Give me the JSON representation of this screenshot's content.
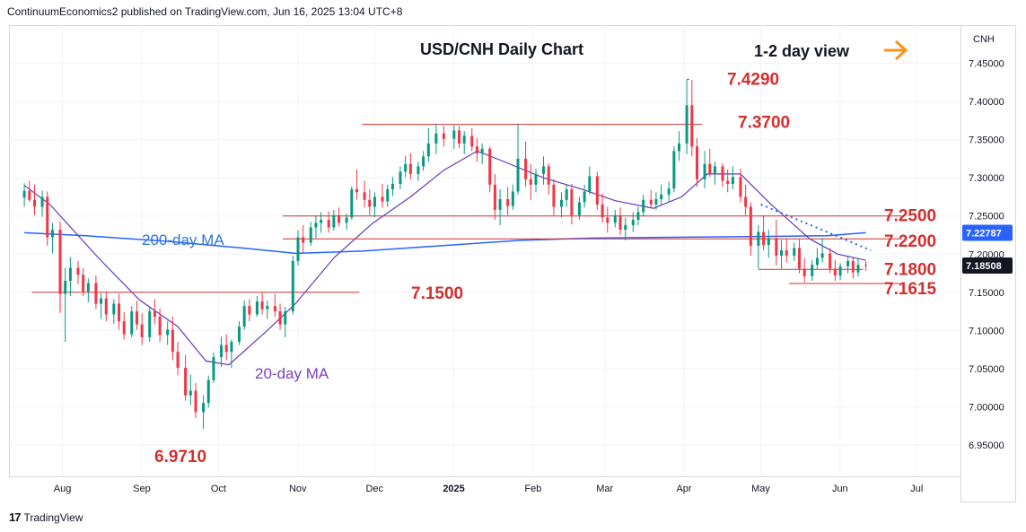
{
  "header": {
    "publisher_line": "ContinuumEconomics2 published on TradingView.com, Jun 16, 2025 13:04 UTC+8"
  },
  "footer": {
    "brand": "TradingView",
    "logo_glyph": "17"
  },
  "symbol_box": {
    "label": "CNH"
  },
  "annotation": {
    "view": "1-2 day view",
    "arrow_color": "#f7931a"
  },
  "colors": {
    "up": "#089981",
    "down": "#f23645",
    "ma200": "#2962ff",
    "ma20": "#673ab7",
    "level": "#d32f2f",
    "label_blue": "#2b77d9",
    "label_purple": "#7b3fbf"
  },
  "chart_data": {
    "type": "candlestick",
    "title": "USD/CNH Daily Chart",
    "y_range": [
      6.91,
      7.5
    ],
    "y_ticks": [
      6.95,
      7.0,
      7.05,
      7.1,
      7.15,
      7.2,
      7.25,
      7.3,
      7.35,
      7.4,
      7.45
    ],
    "y_tick_labels": [
      "6.95000",
      "7.00000",
      "7.05000",
      "7.10000",
      "7.15000",
      "7.20000",
      "7.25000",
      "7.30000",
      "7.35000",
      "7.40000",
      "7.45000"
    ],
    "x_labels": [
      "Aug",
      "Sep",
      "Oct",
      "Nov",
      "Dec",
      "2025",
      "Feb",
      "Mar",
      "Apr",
      "May",
      "Jun",
      "Jul"
    ],
    "price_tags": [
      {
        "value": 7.22787,
        "label": "7.22787",
        "color": "#2962ff"
      },
      {
        "value": 7.18508,
        "label": "7.18508",
        "color": "#131722"
      }
    ],
    "levels": [
      {
        "label": "7.4290",
        "value": 7.429,
        "start": "2025-04-07",
        "end": "2025-04-08"
      },
      {
        "label": "7.3700",
        "value": 7.37,
        "start": "2024-12-01",
        "end": "2025-04-13"
      },
      {
        "label": "7.2500",
        "value": 7.25,
        "start": "2024-10-31",
        "end": "2025-06-30"
      },
      {
        "label": "7.2200",
        "value": 7.22,
        "start": "2024-10-31",
        "end": "2025-06-30"
      },
      {
        "label": "7.1800",
        "value": 7.18,
        "start": "2025-05-05",
        "end": "2025-06-15"
      },
      {
        "label": "7.1615",
        "value": 7.1615,
        "start": "2025-05-17",
        "end": "2025-06-30"
      },
      {
        "label": "7.1500",
        "value": 7.15,
        "start": "2024-07-25",
        "end": "2024-11-30"
      },
      {
        "label": "6.9710",
        "value": 6.971
      }
    ],
    "ma_labels": [
      {
        "label": "200-day MA",
        "series": "ma200"
      },
      {
        "label": "20-day MA",
        "series": "ma20"
      }
    ],
    "candles": [
      [
        "2024-07-22",
        7.274,
        7.293,
        7.262,
        7.283
      ],
      [
        "2024-07-24",
        7.283,
        7.296,
        7.268,
        7.271
      ],
      [
        "2024-07-26",
        7.271,
        7.291,
        7.251,
        7.262
      ],
      [
        "2024-07-29",
        7.262,
        7.283,
        7.249,
        7.275
      ],
      [
        "2024-07-31",
        7.275,
        7.282,
        7.211,
        7.222
      ],
      [
        "2024-08-02",
        7.222,
        7.241,
        7.201,
        7.232
      ],
      [
        "2024-08-05",
        7.232,
        7.243,
        7.123,
        7.148
      ],
      [
        "2024-08-07",
        7.148,
        7.182,
        7.085,
        7.165
      ],
      [
        "2024-08-09",
        7.165,
        7.196,
        7.145,
        7.182
      ],
      [
        "2024-08-12",
        7.182,
        7.191,
        7.161,
        7.173
      ],
      [
        "2024-08-14",
        7.173,
        7.182,
        7.145,
        7.151
      ],
      [
        "2024-08-16",
        7.151,
        7.168,
        7.137,
        7.162
      ],
      [
        "2024-08-19",
        7.162,
        7.172,
        7.128,
        7.135
      ],
      [
        "2024-08-21",
        7.135,
        7.149,
        7.115,
        7.142
      ],
      [
        "2024-08-23",
        7.142,
        7.151,
        7.112,
        7.121
      ],
      [
        "2024-08-26",
        7.121,
        7.141,
        7.109,
        7.135
      ],
      [
        "2024-08-28",
        7.135,
        7.148,
        7.101,
        7.112
      ],
      [
        "2024-08-30",
        7.112,
        7.124,
        7.088,
        7.095
      ],
      [
        "2024-09-02",
        7.095,
        7.132,
        7.091,
        7.125
      ],
      [
        "2024-09-04",
        7.125,
        7.139,
        7.101,
        7.108
      ],
      [
        "2024-09-06",
        7.108,
        7.122,
        7.081,
        7.091
      ],
      [
        "2024-09-09",
        7.091,
        7.131,
        7.085,
        7.125
      ],
      [
        "2024-09-11",
        7.125,
        7.141,
        7.108,
        7.118
      ],
      [
        "2024-09-13",
        7.118,
        7.129,
        7.085,
        7.094
      ],
      [
        "2024-09-16",
        7.094,
        7.112,
        7.081,
        7.101
      ],
      [
        "2024-09-18",
        7.101,
        7.118,
        7.061,
        7.072
      ],
      [
        "2024-09-20",
        7.072,
        7.085,
        7.041,
        7.051
      ],
      [
        "2024-09-23",
        7.051,
        7.068,
        7.008,
        7.015
      ],
      [
        "2024-09-25",
        7.015,
        7.042,
        7.002,
        7.021
      ],
      [
        "2024-09-27",
        7.021,
        7.031,
        6.985,
        6.993
      ],
      [
        "2024-09-30",
        6.993,
        7.015,
        6.971,
        7.005
      ],
      [
        "2024-10-02",
        7.005,
        7.041,
        6.999,
        7.035
      ],
      [
        "2024-10-04",
        7.035,
        7.071,
        7.031,
        7.065
      ],
      [
        "2024-10-07",
        7.065,
        7.092,
        7.052,
        7.081
      ],
      [
        "2024-10-09",
        7.081,
        7.095,
        7.061,
        7.072
      ],
      [
        "2024-10-11",
        7.072,
        7.088,
        7.051,
        7.085
      ],
      [
        "2024-10-14",
        7.085,
        7.112,
        7.081,
        7.105
      ],
      [
        "2024-10-16",
        7.105,
        7.139,
        7.101,
        7.132
      ],
      [
        "2024-10-18",
        7.132,
        7.141,
        7.112,
        7.121
      ],
      [
        "2024-10-21",
        7.121,
        7.145,
        7.118,
        7.138
      ],
      [
        "2024-10-23",
        7.138,
        7.149,
        7.121,
        7.128
      ],
      [
        "2024-10-25",
        7.128,
        7.139,
        7.115,
        7.132
      ],
      [
        "2024-10-28",
        7.132,
        7.148,
        7.118,
        7.125
      ],
      [
        "2024-10-30",
        7.125,
        7.135,
        7.101,
        7.108
      ],
      [
        "2024-11-01",
        7.108,
        7.131,
        7.091,
        7.125
      ],
      [
        "2024-11-04",
        7.125,
        7.198,
        7.121,
        7.191
      ],
      [
        "2024-11-06",
        7.191,
        7.231,
        7.185,
        7.222
      ],
      [
        "2024-11-08",
        7.222,
        7.238,
        7.201,
        7.215
      ],
      [
        "2024-11-11",
        7.215,
        7.242,
        7.211,
        7.235
      ],
      [
        "2024-11-13",
        7.235,
        7.251,
        7.221,
        7.241
      ],
      [
        "2024-11-15",
        7.241,
        7.255,
        7.228,
        7.245
      ],
      [
        "2024-11-18",
        7.245,
        7.256,
        7.228,
        7.235
      ],
      [
        "2024-11-20",
        7.235,
        7.258,
        7.231,
        7.251
      ],
      [
        "2024-11-22",
        7.251,
        7.261,
        7.236,
        7.241
      ],
      [
        "2024-11-25",
        7.241,
        7.253,
        7.232,
        7.248
      ],
      [
        "2024-11-27",
        7.248,
        7.289,
        7.245,
        7.285
      ],
      [
        "2024-11-29",
        7.285,
        7.311,
        7.271,
        7.281
      ],
      [
        "2024-12-02",
        7.281,
        7.296,
        7.261,
        7.271
      ],
      [
        "2024-12-04",
        7.271,
        7.285,
        7.251,
        7.262
      ],
      [
        "2024-12-06",
        7.262,
        7.281,
        7.248,
        7.275
      ],
      [
        "2024-12-09",
        7.275,
        7.292,
        7.261,
        7.269
      ],
      [
        "2024-12-11",
        7.269,
        7.291,
        7.262,
        7.285
      ],
      [
        "2024-12-13",
        7.285,
        7.301,
        7.276,
        7.292
      ],
      [
        "2024-12-16",
        7.292,
        7.315,
        7.285,
        7.308
      ],
      [
        "2024-12-18",
        7.308,
        7.329,
        7.301,
        7.318
      ],
      [
        "2024-12-20",
        7.318,
        7.332,
        7.298,
        7.305
      ],
      [
        "2024-12-23",
        7.305,
        7.321,
        7.296,
        7.315
      ],
      [
        "2024-12-25",
        7.315,
        7.335,
        7.309,
        7.328
      ],
      [
        "2024-12-27",
        7.328,
        7.365,
        7.321,
        7.345
      ],
      [
        "2024-12-30",
        7.345,
        7.371,
        7.331,
        7.358
      ],
      [
        "2025-01-02",
        7.358,
        7.368,
        7.341,
        7.351
      ],
      [
        "2025-01-06",
        7.351,
        7.369,
        7.338,
        7.362
      ],
      [
        "2025-01-08",
        7.362,
        7.368,
        7.339,
        7.345
      ],
      [
        "2025-01-10",
        7.345,
        7.361,
        7.331,
        7.355
      ],
      [
        "2025-01-13",
        7.355,
        7.365,
        7.335,
        7.341
      ],
      [
        "2025-01-15",
        7.341,
        7.352,
        7.321,
        7.332
      ],
      [
        "2025-01-17",
        7.332,
        7.345,
        7.318,
        7.338
      ],
      [
        "2025-01-20",
        7.338,
        7.341,
        7.281,
        7.291
      ],
      [
        "2025-01-22",
        7.291,
        7.305,
        7.245,
        7.258
      ],
      [
        "2025-01-24",
        7.258,
        7.285,
        7.238,
        7.272
      ],
      [
        "2025-01-27",
        7.272,
        7.288,
        7.251,
        7.263
      ],
      [
        "2025-01-29",
        7.263,
        7.291,
        7.258,
        7.282
      ],
      [
        "2025-01-31",
        7.282,
        7.371,
        7.278,
        7.325
      ],
      [
        "2025-02-03",
        7.325,
        7.348,
        7.288,
        7.298
      ],
      [
        "2025-02-05",
        7.298,
        7.318,
        7.271,
        7.291
      ],
      [
        "2025-02-07",
        7.291,
        7.312,
        7.281,
        7.305
      ],
      [
        "2025-02-10",
        7.305,
        7.328,
        7.291,
        7.315
      ],
      [
        "2025-02-12",
        7.315,
        7.319,
        7.278,
        7.291
      ],
      [
        "2025-02-14",
        7.291,
        7.298,
        7.251,
        7.262
      ],
      [
        "2025-02-17",
        7.262,
        7.281,
        7.248,
        7.271
      ],
      [
        "2025-02-19",
        7.271,
        7.291,
        7.262,
        7.285
      ],
      [
        "2025-02-21",
        7.285,
        7.292,
        7.239,
        7.251
      ],
      [
        "2025-02-24",
        7.251,
        7.275,
        7.245,
        7.268
      ],
      [
        "2025-02-26",
        7.268,
        7.291,
        7.261,
        7.282
      ],
      [
        "2025-02-28",
        7.282,
        7.315,
        7.278,
        7.302
      ],
      [
        "2025-03-03",
        7.302,
        7.308,
        7.258,
        7.265
      ],
      [
        "2025-03-05",
        7.265,
        7.279,
        7.241,
        7.248
      ],
      [
        "2025-03-07",
        7.248,
        7.262,
        7.228,
        7.241
      ],
      [
        "2025-03-10",
        7.241,
        7.258,
        7.235,
        7.251
      ],
      [
        "2025-03-12",
        7.251,
        7.261,
        7.225,
        7.232
      ],
      [
        "2025-03-14",
        7.232,
        7.248,
        7.218,
        7.238
      ],
      [
        "2025-03-17",
        7.238,
        7.255,
        7.229,
        7.245
      ],
      [
        "2025-03-19",
        7.245,
        7.262,
        7.238,
        7.255
      ],
      [
        "2025-03-21",
        7.255,
        7.278,
        7.249,
        7.271
      ],
      [
        "2025-03-24",
        7.271,
        7.284,
        7.261,
        7.265
      ],
      [
        "2025-03-26",
        7.265,
        7.281,
        7.258,
        7.272
      ],
      [
        "2025-03-28",
        7.272,
        7.291,
        7.265,
        7.278
      ],
      [
        "2025-03-31",
        7.278,
        7.295,
        7.268,
        7.286
      ],
      [
        "2025-04-02",
        7.286,
        7.341,
        7.281,
        7.335
      ],
      [
        "2025-04-04",
        7.335,
        7.361,
        7.322,
        7.345
      ],
      [
        "2025-04-07",
        7.345,
        7.429,
        7.331,
        7.395
      ],
      [
        "2025-04-09",
        7.395,
        7.428,
        7.328,
        7.341
      ],
      [
        "2025-04-11",
        7.341,
        7.352,
        7.288,
        7.298
      ],
      [
        "2025-04-14",
        7.298,
        7.335,
        7.286,
        7.318
      ],
      [
        "2025-04-16",
        7.318,
        7.338,
        7.301,
        7.305
      ],
      [
        "2025-04-18",
        7.305,
        7.321,
        7.291,
        7.315
      ],
      [
        "2025-04-21",
        7.315,
        7.319,
        7.288,
        7.296
      ],
      [
        "2025-04-23",
        7.296,
        7.311,
        7.281,
        7.292
      ],
      [
        "2025-04-25",
        7.292,
        7.315,
        7.285,
        7.301
      ],
      [
        "2025-04-28",
        7.301,
        7.312,
        7.268,
        7.275
      ],
      [
        "2025-04-30",
        7.275,
        7.291,
        7.251,
        7.262
      ],
      [
        "2025-05-02",
        7.262,
        7.268,
        7.198,
        7.211
      ],
      [
        "2025-05-05",
        7.211,
        7.238,
        7.181,
        7.229
      ],
      [
        "2025-05-07",
        7.229,
        7.251,
        7.205,
        7.212
      ],
      [
        "2025-05-09",
        7.212,
        7.232,
        7.195,
        7.221
      ],
      [
        "2025-05-12",
        7.221,
        7.245,
        7.185,
        7.198
      ],
      [
        "2025-05-14",
        7.198,
        7.218,
        7.181,
        7.205
      ],
      [
        "2025-05-16",
        7.205,
        7.221,
        7.189,
        7.198
      ],
      [
        "2025-05-19",
        7.198,
        7.215,
        7.191,
        7.208
      ],
      [
        "2025-05-21",
        7.208,
        7.219,
        7.175,
        7.181
      ],
      [
        "2025-05-23",
        7.181,
        7.195,
        7.163,
        7.171
      ],
      [
        "2025-05-26",
        7.171,
        7.192,
        7.165,
        7.186
      ],
      [
        "2025-05-28",
        7.186,
        7.208,
        7.181,
        7.195
      ],
      [
        "2025-05-30",
        7.195,
        7.221,
        7.189,
        7.201
      ],
      [
        "2025-06-02",
        7.201,
        7.208,
        7.175,
        7.181
      ],
      [
        "2025-06-04",
        7.181,
        7.192,
        7.165,
        7.172
      ],
      [
        "2025-06-06",
        7.172,
        7.188,
        7.166,
        7.184
      ],
      [
        "2025-06-09",
        7.184,
        7.198,
        7.175,
        7.191
      ],
      [
        "2025-06-11",
        7.191,
        7.195,
        7.168,
        7.176
      ],
      [
        "2025-06-13",
        7.176,
        7.195,
        7.171,
        7.186
      ],
      [
        "2025-06-16",
        7.186,
        7.191,
        7.178,
        7.185
      ]
    ],
    "ma200": [
      [
        "2024-07-22",
        7.228
      ],
      [
        "2024-08-15",
        7.224
      ],
      [
        "2024-09-15",
        7.217
      ],
      [
        "2024-10-15",
        7.208
      ],
      [
        "2024-11-05",
        7.201
      ],
      [
        "2024-12-01",
        7.204
      ],
      [
        "2025-01-01",
        7.211
      ],
      [
        "2025-02-01",
        7.218
      ],
      [
        "2025-03-01",
        7.221
      ],
      [
        "2025-04-01",
        7.222
      ],
      [
        "2025-05-01",
        7.223
      ],
      [
        "2025-06-01",
        7.224
      ],
      [
        "2025-06-16",
        7.228
      ]
    ],
    "ma20": [
      [
        "2024-07-22",
        7.29
      ],
      [
        "2024-08-01",
        7.265
      ],
      [
        "2024-08-20",
        7.195
      ],
      [
        "2024-09-05",
        7.14
      ],
      [
        "2024-09-20",
        7.105
      ],
      [
        "2024-10-01",
        7.06
      ],
      [
        "2024-10-10",
        7.055
      ],
      [
        "2024-10-25",
        7.1
      ],
      [
        "2024-11-05",
        7.135
      ],
      [
        "2024-11-20",
        7.195
      ],
      [
        "2024-12-05",
        7.24
      ],
      [
        "2024-12-20",
        7.275
      ],
      [
        "2025-01-02",
        7.31
      ],
      [
        "2025-01-15",
        7.335
      ],
      [
        "2025-01-25",
        7.322
      ],
      [
        "2025-02-10",
        7.3
      ],
      [
        "2025-02-25",
        7.285
      ],
      [
        "2025-03-10",
        7.27
      ],
      [
        "2025-03-25",
        7.26
      ],
      [
        "2025-04-05",
        7.275
      ],
      [
        "2025-04-15",
        7.305
      ],
      [
        "2025-04-28",
        7.305
      ],
      [
        "2025-05-10",
        7.265
      ],
      [
        "2025-05-25",
        7.22
      ],
      [
        "2025-06-05",
        7.2
      ],
      [
        "2025-06-16",
        7.192
      ]
    ],
    "trendline": [
      [
        "2025-05-06",
        7.265
      ],
      [
        "2025-06-18",
        7.205
      ]
    ]
  }
}
